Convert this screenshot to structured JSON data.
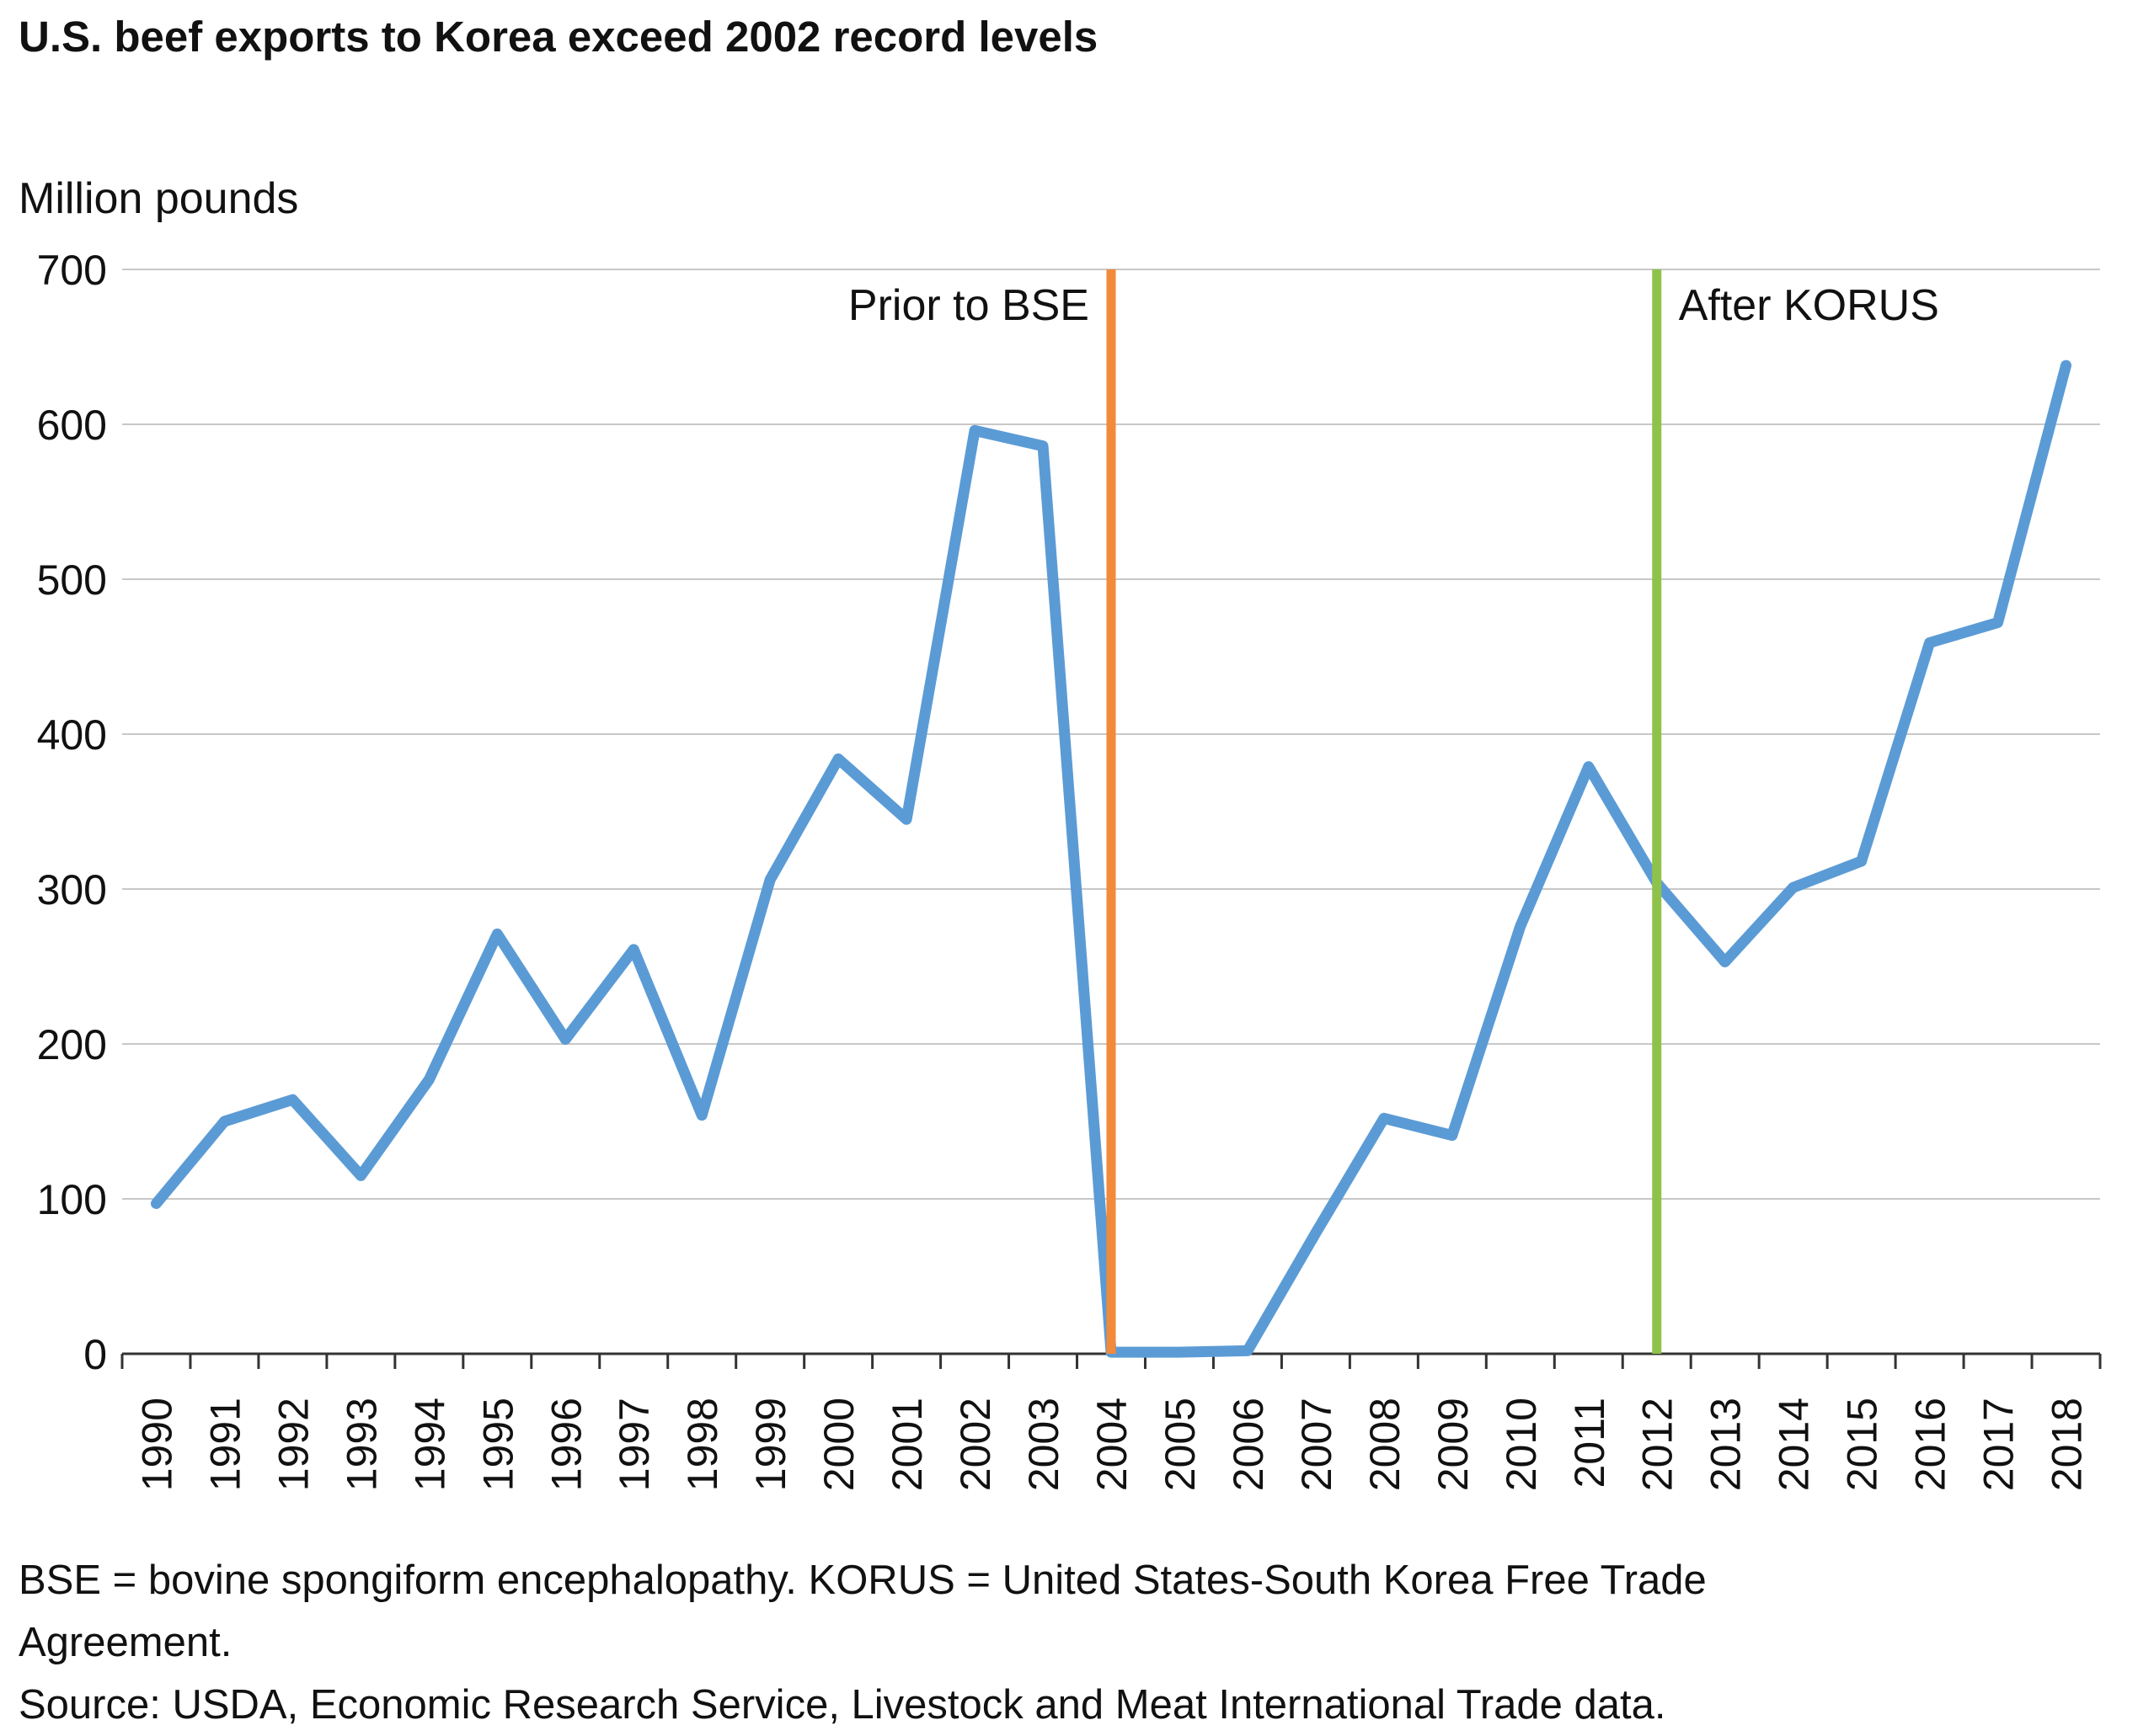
{
  "title": "U.S. beef exports to Korea exceed 2002 record levels",
  "notes": {
    "definition_line1": "BSE = bovine spongiform encephalopathy. KORUS = United States-South Korea Free Trade",
    "definition_line2": "Agreement.",
    "source": "Source: USDA, Economic Research Service, Livestock and Meat International Trade data."
  },
  "chart_data": {
    "type": "line",
    "ylabel": "Million pounds",
    "ylim": [
      0,
      700
    ],
    "yticks": [
      0,
      100,
      200,
      300,
      400,
      500,
      600,
      700
    ],
    "grid": true,
    "categories": [
      "1990",
      "1991",
      "1992",
      "1993",
      "1994",
      "1995",
      "1996",
      "1997",
      "1998",
      "1999",
      "2000",
      "2001",
      "2002",
      "2003",
      "2004",
      "2005",
      "2006",
      "2007",
      "2008",
      "2009",
      "2010",
      "2011",
      "2012",
      "2013",
      "2014",
      "2015",
      "2016",
      "2017",
      "2018"
    ],
    "series": [
      {
        "color": "#5b9bd5",
        "values": [
          97,
          150,
          164,
          115,
          177,
          271,
          203,
          261,
          154,
          306,
          384,
          345,
          596,
          586,
          1,
          1,
          2,
          78,
          152,
          141,
          276,
          379,
          304,
          253,
          301,
          318,
          459,
          472,
          638
        ]
      }
    ],
    "annotations": [
      {
        "label": "Prior to BSE",
        "at": "2004",
        "color": "#f28a3a",
        "text_side": "left"
      },
      {
        "label": "After KORUS",
        "at": "2012",
        "color": "#8fc24a",
        "text_side": "right"
      }
    ]
  }
}
